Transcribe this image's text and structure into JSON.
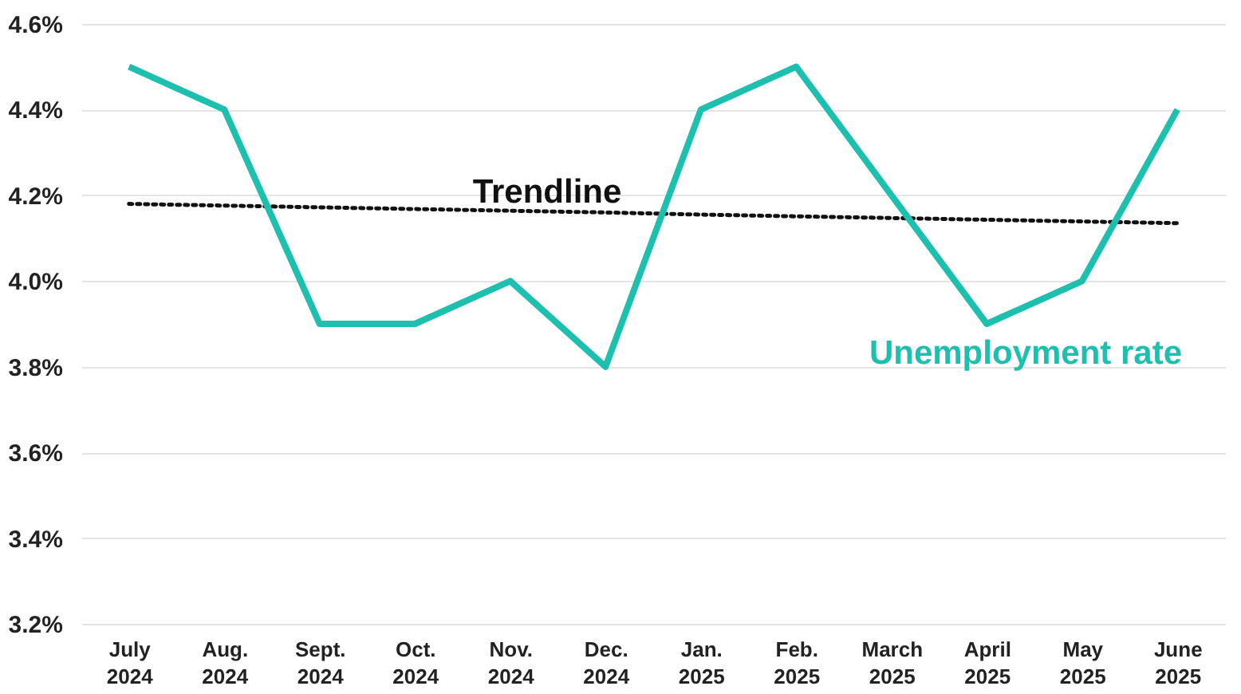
{
  "chart_data": {
    "type": "line",
    "categories": [
      "July 2024",
      "Aug. 2024",
      "Sept. 2024",
      "Oct. 2024",
      "Nov. 2024",
      "Dec. 2024",
      "Jan. 2025",
      "Feb. 2025",
      "March 2025",
      "April 2025",
      "May 2025",
      "June 2025"
    ],
    "series": [
      {
        "name": "Trendline",
        "color": "#111111",
        "line_style": "dotted",
        "values": [
          4.18,
          4.176,
          4.172,
          4.168,
          4.164,
          4.16,
          4.155,
          4.151,
          4.147,
          4.143,
          4.139,
          4.135
        ]
      },
      {
        "name": "Unemployment rate",
        "color": "#1dbfae",
        "line_style": "solid",
        "values": [
          4.5,
          4.4,
          3.9,
          3.9,
          4.0,
          3.8,
          4.4,
          4.5,
          4.2,
          3.9,
          4.0,
          4.4
        ]
      }
    ],
    "ylim": [
      3.2,
      4.6
    ],
    "yticks": [
      {
        "value": 3.2,
        "label": "3.2%"
      },
      {
        "value": 3.4,
        "label": "3.4%"
      },
      {
        "value": 3.6,
        "label": "3.6%"
      },
      {
        "value": 3.8,
        "label": "3.8%"
      },
      {
        "value": 4.0,
        "label": "4.0%"
      },
      {
        "value": 4.2,
        "label": "4.2%"
      },
      {
        "value": 4.4,
        "label": "4.4%"
      },
      {
        "value": 4.6,
        "label": "4.6%"
      }
    ],
    "grid": "y",
    "legend": false,
    "marker": "none"
  }
}
